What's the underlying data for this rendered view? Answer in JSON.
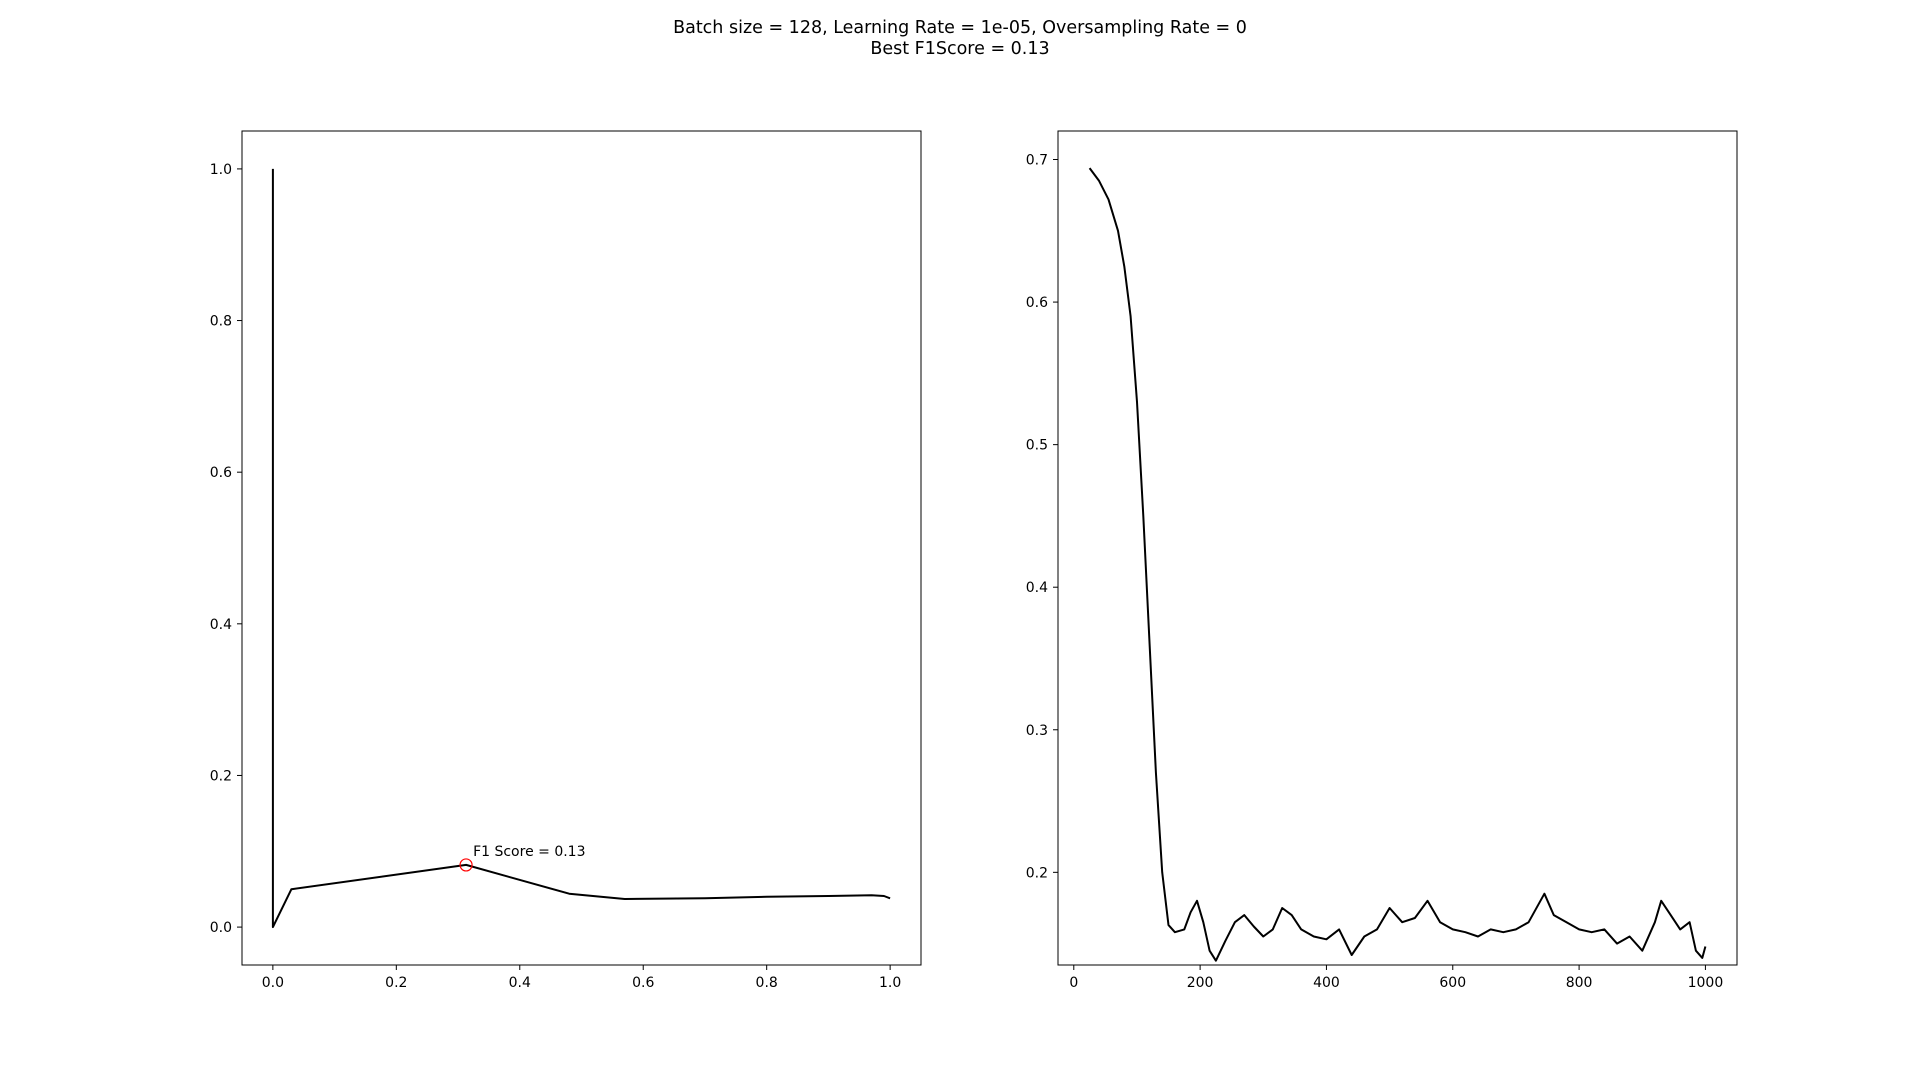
{
  "figure": {
    "title_line1": "Batch size = 128, Learning Rate = 1e-05, Oversampling Rate = 0",
    "title_line2": "Best F1Score = 0.13"
  },
  "chart_data": [
    {
      "type": "line",
      "title": "",
      "xlabel": "",
      "ylabel": "",
      "xlim": [
        -0.05,
        1.05
      ],
      "ylim": [
        -0.05,
        1.05
      ],
      "xticks": [
        "0.0",
        "0.2",
        "0.4",
        "0.6",
        "0.8",
        "1.0"
      ],
      "yticks": [
        "0.0",
        "0.2",
        "0.4",
        "0.6",
        "0.8",
        "1.0"
      ],
      "series": [
        {
          "color": "#000000",
          "x": [
            0.0,
            0.0,
            0.03,
            0.313,
            0.48,
            0.57,
            0.7,
            0.8,
            0.9,
            0.97,
            0.99,
            1.0
          ],
          "y": [
            1.0,
            0.0,
            0.05,
            0.082,
            0.044,
            0.037,
            0.038,
            0.04,
            0.041,
            0.042,
            0.041,
            0.038
          ]
        }
      ],
      "marker": {
        "x": 0.313,
        "y": 0.082,
        "color": "#ff0000",
        "shape": "open-circle"
      },
      "annotation": "F1 Score = 0.13",
      "grid": false
    },
    {
      "type": "line",
      "title": "",
      "xlabel": "",
      "ylabel": "",
      "xlim": [
        -25,
        1050
      ],
      "ylim": [
        0.135,
        0.72
      ],
      "xticks": [
        "0",
        "200",
        "400",
        "600",
        "800",
        "1000"
      ],
      "yticks": [
        "0.2",
        "0.3",
        "0.4",
        "0.5",
        "0.6",
        "0.7"
      ],
      "series": [
        {
          "color": "#000000",
          "x": [
            25,
            40,
            55,
            70,
            80,
            90,
            100,
            110,
            120,
            130,
            140,
            150,
            160,
            175,
            185,
            195,
            205,
            215,
            225,
            240,
            255,
            270,
            285,
            300,
            315,
            330,
            345,
            360,
            380,
            400,
            420,
            440,
            460,
            480,
            500,
            520,
            540,
            560,
            580,
            600,
            620,
            640,
            660,
            680,
            700,
            720,
            745,
            760,
            780,
            800,
            820,
            840,
            860,
            880,
            900,
            920,
            930,
            945,
            960,
            975,
            985,
            995,
            1000
          ],
          "y": [
            0.694,
            0.685,
            0.672,
            0.65,
            0.625,
            0.59,
            0.53,
            0.45,
            0.36,
            0.27,
            0.2,
            0.163,
            0.158,
            0.16,
            0.172,
            0.18,
            0.165,
            0.145,
            0.138,
            0.152,
            0.165,
            0.17,
            0.162,
            0.155,
            0.16,
            0.175,
            0.17,
            0.16,
            0.155,
            0.153,
            0.16,
            0.142,
            0.155,
            0.16,
            0.175,
            0.165,
            0.168,
            0.18,
            0.165,
            0.16,
            0.158,
            0.155,
            0.16,
            0.158,
            0.16,
            0.165,
            0.185,
            0.17,
            0.165,
            0.16,
            0.158,
            0.16,
            0.15,
            0.155,
            0.145,
            0.165,
            0.18,
            0.17,
            0.16,
            0.165,
            0.145,
            0.14,
            0.148
          ]
        }
      ],
      "grid": false
    }
  ]
}
